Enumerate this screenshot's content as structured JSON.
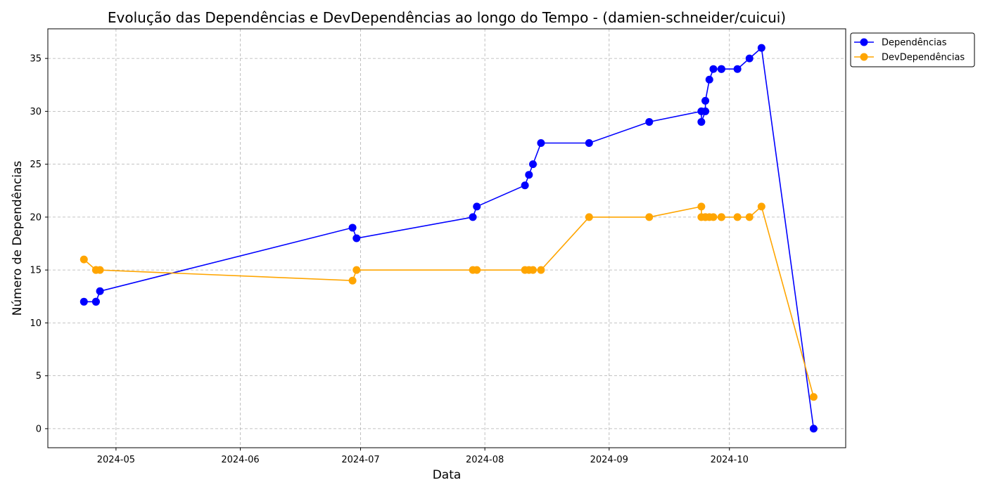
{
  "chart_data": {
    "type": "line",
    "title": "Evolução das Dependências e DevDependências ao longo do Tempo - (damien-schneider/cuicui)",
    "xlabel": "Data",
    "ylabel": "Número de Dependências",
    "x_tick_labels": [
      "2024-05",
      "2024-06",
      "2024-07",
      "2024-08",
      "2024-09",
      "2024-10"
    ],
    "x_tick_dates": [
      "2024-05-01",
      "2024-06-01",
      "2024-07-01",
      "2024-08-01",
      "2024-09-01",
      "2024-10-01"
    ],
    "xlim": [
      "2024-04-14",
      "2024-10-30"
    ],
    "ylim": [
      -1.8,
      37.8
    ],
    "y_ticks": [
      0,
      5,
      10,
      15,
      20,
      25,
      30,
      35
    ],
    "grid": true,
    "legend": "upper-right-outside",
    "series": [
      {
        "name": "Dependências",
        "color": "#0000ff",
        "x": [
          "2024-04-23",
          "2024-04-26",
          "2024-04-26",
          "2024-04-27",
          "2024-06-29",
          "2024-06-30",
          "2024-07-29",
          "2024-07-30",
          "2024-08-11",
          "2024-08-12",
          "2024-08-13",
          "2024-08-15",
          "2024-08-27",
          "2024-09-11",
          "2024-09-24",
          "2024-09-24",
          "2024-09-25",
          "2024-09-25",
          "2024-09-26",
          "2024-09-27",
          "2024-09-29",
          "2024-09-29",
          "2024-10-03",
          "2024-10-06",
          "2024-10-09",
          "2024-10-22"
        ],
        "y": [
          12,
          12,
          12,
          13,
          19,
          18,
          20,
          21,
          23,
          24,
          25,
          27,
          27,
          29,
          30,
          29,
          30,
          31,
          33,
          34,
          34,
          34,
          34,
          35,
          36,
          0
        ]
      },
      {
        "name": "DevDependências",
        "color": "#ffa500",
        "x": [
          "2024-04-23",
          "2024-04-26",
          "2024-04-26",
          "2024-04-27",
          "2024-06-29",
          "2024-06-30",
          "2024-07-29",
          "2024-07-30",
          "2024-08-11",
          "2024-08-12",
          "2024-08-13",
          "2024-08-15",
          "2024-08-27",
          "2024-09-11",
          "2024-09-24",
          "2024-09-24",
          "2024-09-25",
          "2024-09-25",
          "2024-09-26",
          "2024-09-27",
          "2024-09-29",
          "2024-09-29",
          "2024-10-03",
          "2024-10-06",
          "2024-10-09",
          "2024-10-22"
        ],
        "y": [
          16,
          15,
          15,
          15,
          14,
          15,
          15,
          15,
          15,
          15,
          15,
          15,
          20,
          20,
          21,
          20,
          20,
          20,
          20,
          20,
          20,
          20,
          20,
          20,
          21,
          3
        ]
      }
    ]
  }
}
